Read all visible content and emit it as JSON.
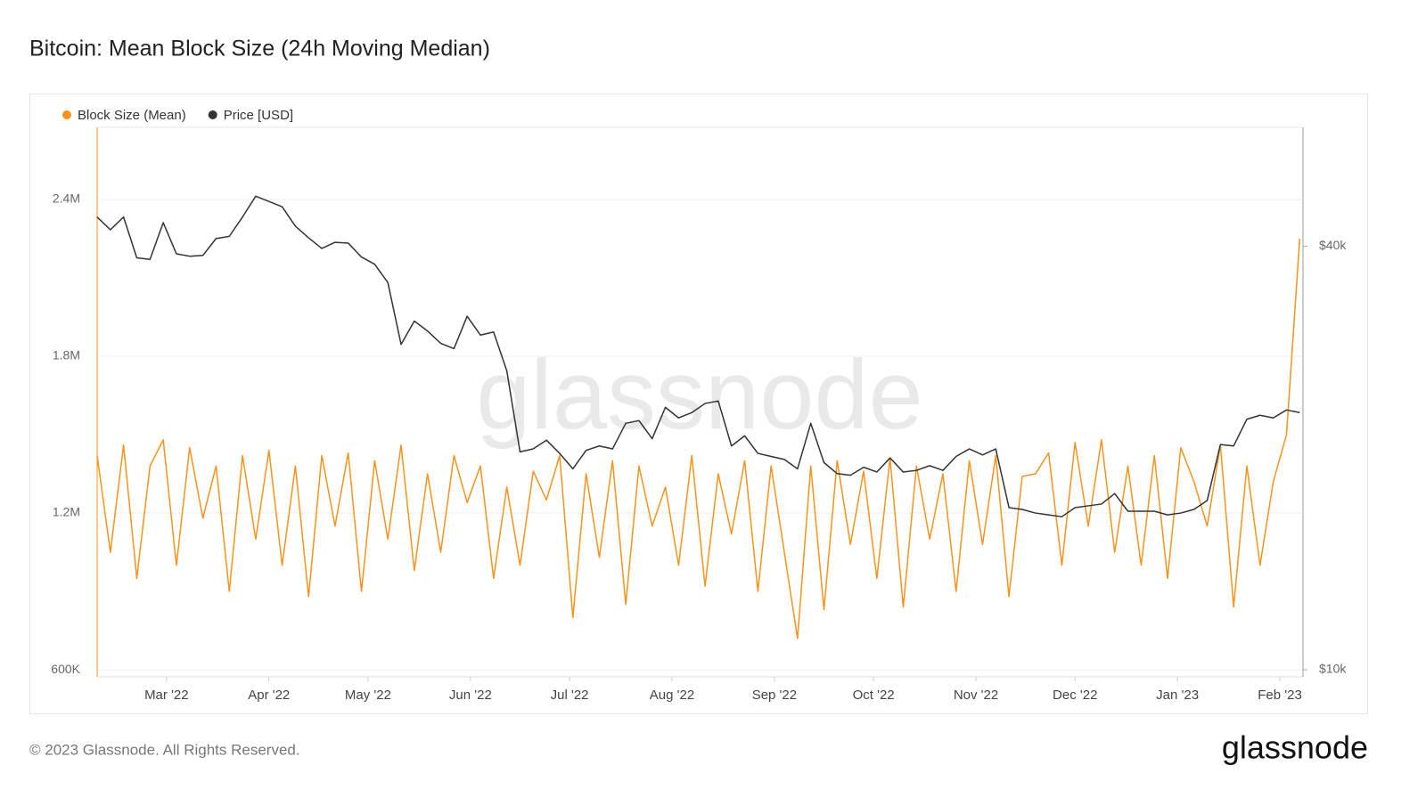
{
  "chart_data": {
    "type": "line",
    "title": "Bitcoin: Mean Block Size (24h Moving Median)",
    "watermark": "glassnode",
    "x": [
      "2022-02-08",
      "2022-02-12",
      "2022-02-16",
      "2022-02-20",
      "2022-02-24",
      "2022-02-28",
      "2022-03-04",
      "2022-03-08",
      "2022-03-12",
      "2022-03-16",
      "2022-03-20",
      "2022-03-24",
      "2022-03-28",
      "2022-04-01",
      "2022-04-05",
      "2022-04-09",
      "2022-04-13",
      "2022-04-17",
      "2022-04-21",
      "2022-04-25",
      "2022-04-29",
      "2022-05-03",
      "2022-05-07",
      "2022-05-11",
      "2022-05-15",
      "2022-05-19",
      "2022-05-23",
      "2022-05-27",
      "2022-05-31",
      "2022-06-04",
      "2022-06-08",
      "2022-06-12",
      "2022-06-16",
      "2022-06-20",
      "2022-06-24",
      "2022-06-28",
      "2022-07-02",
      "2022-07-06",
      "2022-07-10",
      "2022-07-14",
      "2022-07-18",
      "2022-07-22",
      "2022-07-26",
      "2022-07-30",
      "2022-08-03",
      "2022-08-07",
      "2022-08-11",
      "2022-08-15",
      "2022-08-19",
      "2022-08-23",
      "2022-08-27",
      "2022-08-31",
      "2022-09-04",
      "2022-09-08",
      "2022-09-12",
      "2022-09-16",
      "2022-09-20",
      "2022-09-24",
      "2022-09-28",
      "2022-10-02",
      "2022-10-06",
      "2022-10-10",
      "2022-10-14",
      "2022-10-18",
      "2022-10-22",
      "2022-10-26",
      "2022-10-30",
      "2022-11-03",
      "2022-11-07",
      "2022-11-11",
      "2022-11-15",
      "2022-11-19",
      "2022-11-23",
      "2022-11-27",
      "2022-12-01",
      "2022-12-05",
      "2022-12-09",
      "2022-12-13",
      "2022-12-17",
      "2022-12-21",
      "2022-12-25",
      "2022-12-29",
      "2023-01-02",
      "2023-01-06",
      "2023-01-10",
      "2023-01-14",
      "2023-01-18",
      "2023-01-22",
      "2023-01-26",
      "2023-01-30",
      "2023-02-03",
      "2023-02-07"
    ],
    "series": [
      {
        "name": "Block Size (Mean)",
        "color": "#f7931a",
        "axis": "y",
        "values": [
          1420000,
          1050000,
          1460000,
          950000,
          1380000,
          1480000,
          1000000,
          1450000,
          1180000,
          1380000,
          900000,
          1420000,
          1100000,
          1440000,
          1000000,
          1380000,
          880000,
          1420000,
          1150000,
          1430000,
          900000,
          1400000,
          1100000,
          1460000,
          980000,
          1350000,
          1050000,
          1420000,
          1240000,
          1380000,
          950000,
          1300000,
          1000000,
          1360000,
          1250000,
          1420000,
          800000,
          1350000,
          1030000,
          1400000,
          850000,
          1380000,
          1150000,
          1300000,
          1000000,
          1420000,
          920000,
          1350000,
          1120000,
          1400000,
          900000,
          1380000,
          1050000,
          720000,
          1380000,
          830000,
          1400000,
          1080000,
          1360000,
          950000,
          1410000,
          840000,
          1380000,
          1100000,
          1350000,
          900000,
          1400000,
          1080000,
          1420000,
          880000,
          1340000,
          1350000,
          1430000,
          1000000,
          1470000,
          1150000,
          1480000,
          1050000,
          1380000,
          1000000,
          1420000,
          950000,
          1450000,
          1320000,
          1150000,
          1460000,
          840000,
          1380000,
          1000000,
          1320000,
          1500000,
          2250000
        ]
      },
      {
        "name": "Price [USD]",
        "color": "#333333",
        "axis": "y2",
        "values": [
          44000,
          42200,
          44000,
          38500,
          38300,
          43200,
          39000,
          38700,
          38800,
          41000,
          41300,
          44000,
          47100,
          46300,
          45500,
          42700,
          41100,
          39700,
          40500,
          40400,
          38600,
          37700,
          35500,
          29000,
          31300,
          30300,
          29100,
          28600,
          31800,
          29900,
          30200,
          26600,
          20400,
          20600,
          21200,
          20300,
          19300,
          20500,
          20800,
          20600,
          22400,
          22600,
          21300,
          23600,
          22800,
          23200,
          23900,
          24100,
          20800,
          21500,
          20300,
          20100,
          19900,
          19300,
          22400,
          19700,
          19000,
          18900,
          19400,
          19100,
          20000,
          19100,
          19200,
          19500,
          19200,
          20100,
          20600,
          20200,
          20600,
          17000,
          16900,
          16700,
          16600,
          16500,
          17000,
          17100,
          17200,
          17800,
          16800,
          16800,
          16800,
          16600,
          16700,
          16900,
          17400,
          20900,
          20800,
          22700,
          23000,
          22800,
          23400,
          23200
        ]
      }
    ],
    "xlim": [
      "2022-02-08",
      "2023-02-08"
    ],
    "xticks": [
      {
        "value": "2022-03-01",
        "label": "Mar '22"
      },
      {
        "value": "2022-04-01",
        "label": "Apr '22"
      },
      {
        "value": "2022-05-01",
        "label": "May '22"
      },
      {
        "value": "2022-06-01",
        "label": "Jun '22"
      },
      {
        "value": "2022-07-01",
        "label": "Jul '22"
      },
      {
        "value": "2022-08-01",
        "label": "Aug '22"
      },
      {
        "value": "2022-09-01",
        "label": "Sep '22"
      },
      {
        "value": "2022-10-01",
        "label": "Oct '22"
      },
      {
        "value": "2022-11-01",
        "label": "Nov '22"
      },
      {
        "value": "2022-12-01",
        "label": "Dec '22"
      },
      {
        "value": "2023-01-01",
        "label": "Jan '23"
      },
      {
        "value": "2023-02-01",
        "label": "Feb '23"
      }
    ],
    "ylim": [
      573000,
      2676000
    ],
    "yticks": [
      {
        "value": 600000,
        "label": "600K"
      },
      {
        "value": 1200000,
        "label": "1.2M"
      },
      {
        "value": 1800000,
        "label": "1.8M"
      },
      {
        "value": 2400000,
        "label": "2.4M"
      }
    ],
    "y2lim": [
      9770,
      59000
    ],
    "y2ticks": [
      {
        "value": 10000,
        "label": "$10k"
      },
      {
        "value": 40000,
        "label": "$40k"
      }
    ],
    "y2log": true,
    "grid": true,
    "legend": "top-left"
  },
  "footer": {
    "copyright": "© 2023 Glassnode. All Rights Reserved.",
    "brand": "glassnode"
  }
}
